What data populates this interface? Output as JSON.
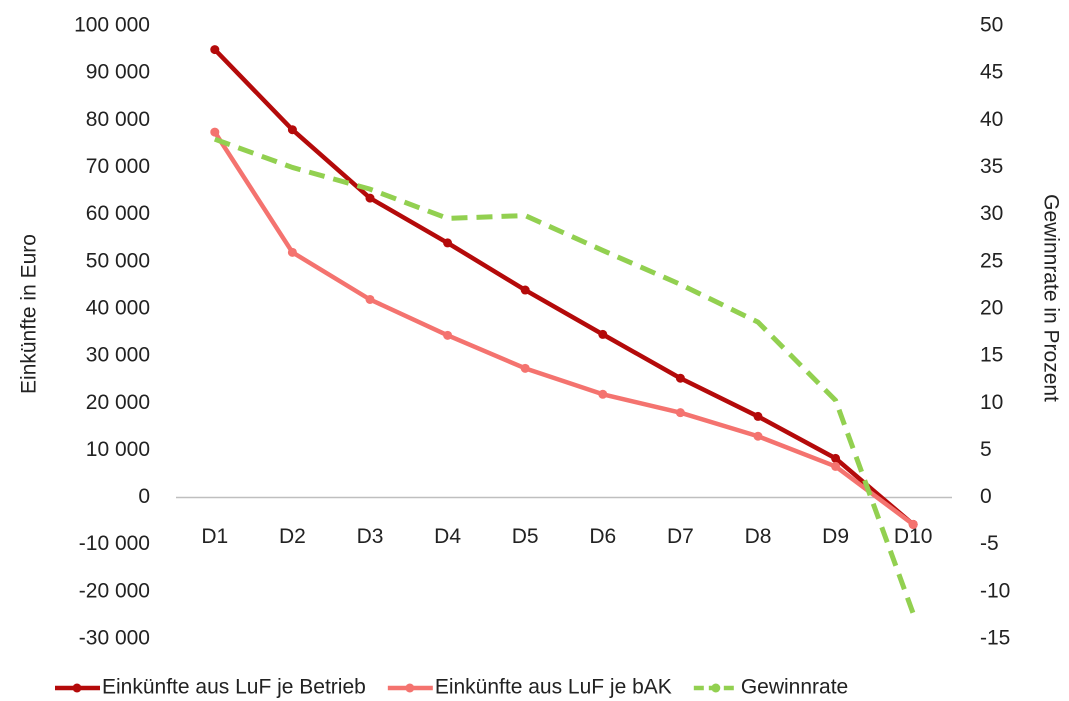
{
  "chart_data": {
    "type": "line",
    "y_label": "Einkünfte in Euro",
    "y2_label": "Gewinnrate in Prozent",
    "categories": [
      "D1",
      "D2",
      "D3",
      "D4",
      "D5",
      "D6",
      "D7",
      "D8",
      "D9",
      "D10"
    ],
    "ylim": [
      -30000,
      100000
    ],
    "yticks": [
      {
        "value": -30000,
        "label": "-30 000"
      },
      {
        "value": -20000,
        "label": "-20 000"
      },
      {
        "value": -10000,
        "label": "-10 000"
      },
      0,
      {
        "value": 10000,
        "label": "10 000"
      },
      {
        "value": 20000,
        "label": "20 000"
      },
      {
        "value": 30000,
        "label": "30 000"
      },
      {
        "value": 40000,
        "label": "40 000"
      },
      {
        "value": 50000,
        "label": "50 000"
      },
      {
        "value": 60000,
        "label": "60 000"
      },
      {
        "value": 70000,
        "label": "70 000"
      },
      {
        "value": 80000,
        "label": "80 000"
      },
      {
        "value": 90000,
        "label": "90 000"
      },
      {
        "value": 100000,
        "label": "100 000"
      }
    ],
    "y2lim": [
      -15,
      50
    ],
    "y2ticks": [
      -15,
      -10,
      -5,
      0,
      5,
      10,
      15,
      20,
      25,
      30,
      35,
      40,
      45,
      50
    ],
    "legend": "bottom",
    "series": [
      {
        "name": "Einkünfte aus LuF je Betrieb",
        "color": "#b40a0a",
        "markers": true,
        "dashed": false,
        "values": [
          95000,
          78000,
          63500,
          54000,
          44000,
          34600,
          25300,
          17200,
          8300,
          -5700
        ]
      },
      {
        "name": "Einkünfte aus LuF je bAK",
        "color": "#f4736f",
        "markers": true,
        "dashed": false,
        "values": [
          77500,
          52000,
          42000,
          34400,
          27400,
          21900,
          18000,
          13000,
          6600,
          -5700
        ]
      },
      {
        "name": "Gewinnrate",
        "color": "#92d050",
        "markers": false,
        "dashed": true,
        "axis": "y2",
        "values": [
          38.0,
          35.0,
          32.7,
          29.6,
          29.9,
          26.2,
          22.6,
          18.6,
          10.3,
          -12.3
        ]
      }
    ]
  }
}
